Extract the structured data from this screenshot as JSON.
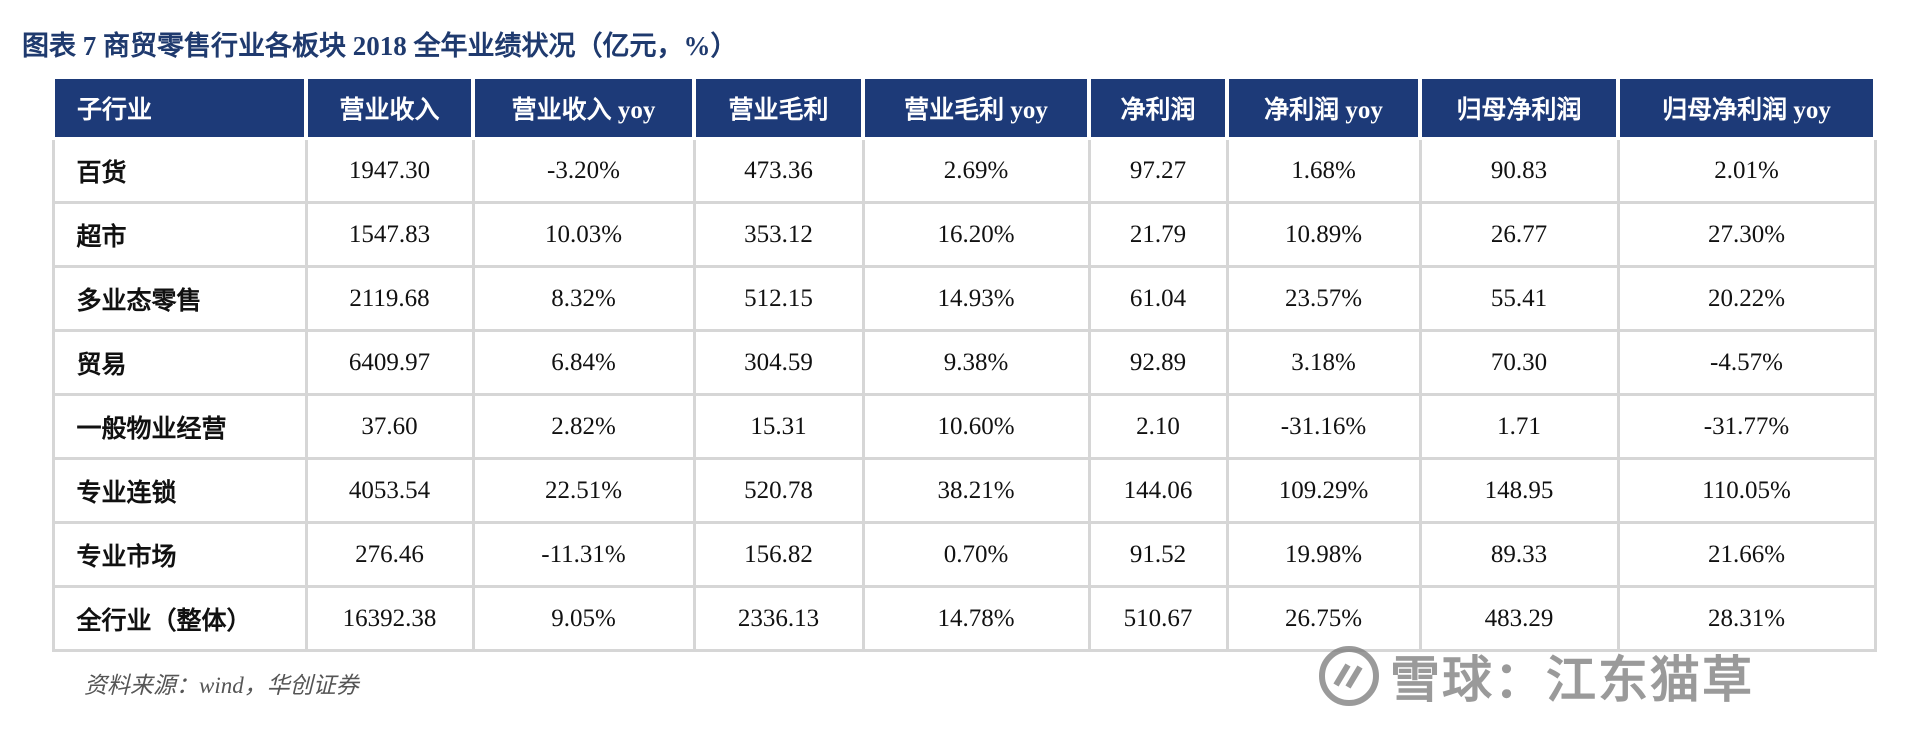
{
  "header": {
    "title": "图表 7 商贸零售行业各板块 2018 全年业绩状况（亿元，%）"
  },
  "table": {
    "columns": [
      "子行业",
      "营业收入",
      "营业收入 yoy",
      "营业毛利",
      "营业毛利 yoy",
      "净利润",
      "净利润 yoy",
      "归母净利润",
      "归母净利润 yoy"
    ],
    "rows": [
      [
        "百货",
        "1947.30",
        "-3.20%",
        "473.36",
        "2.69%",
        "97.27",
        "1.68%",
        "90.83",
        "2.01%"
      ],
      [
        "超市",
        "1547.83",
        "10.03%",
        "353.12",
        "16.20%",
        "21.79",
        "10.89%",
        "26.77",
        "27.30%"
      ],
      [
        "多业态零售",
        "2119.68",
        "8.32%",
        "512.15",
        "14.93%",
        "61.04",
        "23.57%",
        "55.41",
        "20.22%"
      ],
      [
        "贸易",
        "6409.97",
        "6.84%",
        "304.59",
        "9.38%",
        "92.89",
        "3.18%",
        "70.30",
        "-4.57%"
      ],
      [
        "一般物业经营",
        "37.60",
        "2.82%",
        "15.31",
        "10.60%",
        "2.10",
        "-31.16%",
        "1.71",
        "-31.77%"
      ],
      [
        "专业连锁",
        "4053.54",
        "22.51%",
        "520.78",
        "38.21%",
        "144.06",
        "109.29%",
        "148.95",
        "110.05%"
      ],
      [
        "专业市场",
        "276.46",
        "-11.31%",
        "156.82",
        "0.70%",
        "91.52",
        "19.98%",
        "89.33",
        "21.66%"
      ],
      [
        "全行业（整体）",
        "16392.38",
        "9.05%",
        "2336.13",
        "14.78%",
        "510.67",
        "26.75%",
        "483.29",
        "28.31%"
      ]
    ]
  },
  "footer": {
    "source": "资料来源：wind，华创证券",
    "watermark": "雪球：江东猫草"
  }
}
